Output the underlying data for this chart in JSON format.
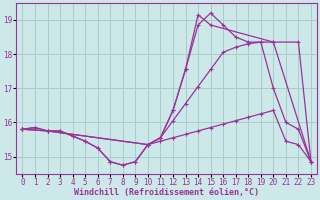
{
  "xlabel": "Windchill (Refroidissement éolien,°C)",
  "bg_color": "#cce8e8",
  "grid_color": "#aacccc",
  "line_color": "#993399",
  "xlim": [
    -0.5,
    23.5
  ],
  "ylim": [
    14.5,
    19.5
  ],
  "yticks": [
    15,
    16,
    17,
    18,
    19
  ],
  "xticks": [
    0,
    1,
    2,
    3,
    4,
    5,
    6,
    7,
    8,
    9,
    10,
    11,
    12,
    13,
    14,
    15,
    16,
    17,
    18,
    19,
    20,
    21,
    22,
    23
  ],
  "lines": [
    {
      "x": [
        0,
        1,
        2,
        3,
        4,
        5,
        6,
        7,
        8,
        9,
        10,
        11,
        12,
        13,
        14,
        15,
        16,
        17,
        18,
        19,
        20,
        21,
        22,
        23
      ],
      "y": [
        15.8,
        15.85,
        15.75,
        15.75,
        15.6,
        15.45,
        15.25,
        14.85,
        14.75,
        14.85,
        15.35,
        15.45,
        15.55,
        15.65,
        15.75,
        15.85,
        15.95,
        16.05,
        16.15,
        16.25,
        16.35,
        15.45,
        15.35,
        14.85
      ]
    },
    {
      "x": [
        0,
        1,
        2,
        3,
        4,
        5,
        6,
        7,
        8,
        9,
        10,
        11,
        12,
        13,
        14,
        15,
        16,
        17,
        18,
        19,
        20,
        21,
        22,
        23
      ],
      "y": [
        15.8,
        15.85,
        15.75,
        15.75,
        15.6,
        15.45,
        15.25,
        14.85,
        14.75,
        14.85,
        15.35,
        15.55,
        16.05,
        16.55,
        17.05,
        17.55,
        18.05,
        18.2,
        18.3,
        18.35,
        17.0,
        16.0,
        15.8,
        14.85
      ]
    },
    {
      "x": [
        0,
        2,
        10,
        11,
        12,
        13,
        14,
        15,
        16,
        17,
        18,
        19,
        20,
        22,
        23
      ],
      "y": [
        15.8,
        15.75,
        15.35,
        15.55,
        16.35,
        17.55,
        18.85,
        19.2,
        18.85,
        18.5,
        18.35,
        18.35,
        18.35,
        18.35,
        14.85
      ]
    },
    {
      "x": [
        0,
        2,
        10,
        11,
        12,
        13,
        14,
        15,
        20,
        23
      ],
      "y": [
        15.8,
        15.75,
        15.35,
        15.55,
        16.35,
        17.55,
        19.15,
        18.85,
        18.35,
        14.85
      ]
    }
  ],
  "marker_size": 2.5,
  "line_width": 0.9,
  "tick_fontsize": 5.5,
  "label_fontsize": 6.0
}
